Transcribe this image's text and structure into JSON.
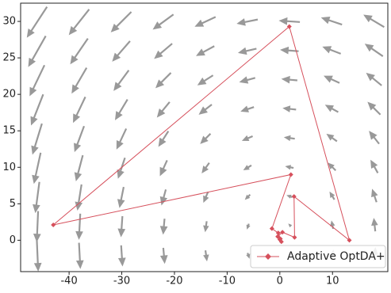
{
  "chart_data": {
    "type": "quiver-line",
    "xlim": [
      -49.2,
      20.5
    ],
    "ylim": [
      -4.3,
      32.5
    ],
    "xticks": [
      -40,
      -30,
      -20,
      -10,
      0,
      10
    ],
    "yticks": [
      0,
      5,
      10,
      15,
      20,
      25,
      30
    ],
    "quiver": {
      "color": "#999999",
      "x": [
        -46,
        -38,
        -30,
        -22,
        -14,
        -6,
        2,
        10,
        18
      ],
      "y": [
        30,
        26,
        22,
        18,
        14,
        10,
        6,
        2,
        -2
      ],
      "u": [
        -3,
        -2.6,
        -2.2,
        -1.8,
        -1.4,
        -1,
        -0.6,
        -0.2,
        0.2
      ],
      "v": [
        -4.6,
        -3.8,
        -3,
        -2.2,
        -1.4,
        -0.6,
        0.2,
        1,
        1.8
      ]
    },
    "series": [
      {
        "name": "Adaptive OptDA+",
        "color": "#d6505c",
        "x": [
          0.1,
          -0.3,
          -1.5,
          2.1,
          -43,
          1.8,
          13.2,
          2.7,
          2.8,
          0.5,
          -0.4,
          0.3,
          0.0
        ],
        "y": [
          0.2,
          1.0,
          1.6,
          9.0,
          2.1,
          29.3,
          0.0,
          6.0,
          0.4,
          1.1,
          0.5,
          -0.2,
          0.1
        ]
      }
    ],
    "legend": "lower right"
  }
}
